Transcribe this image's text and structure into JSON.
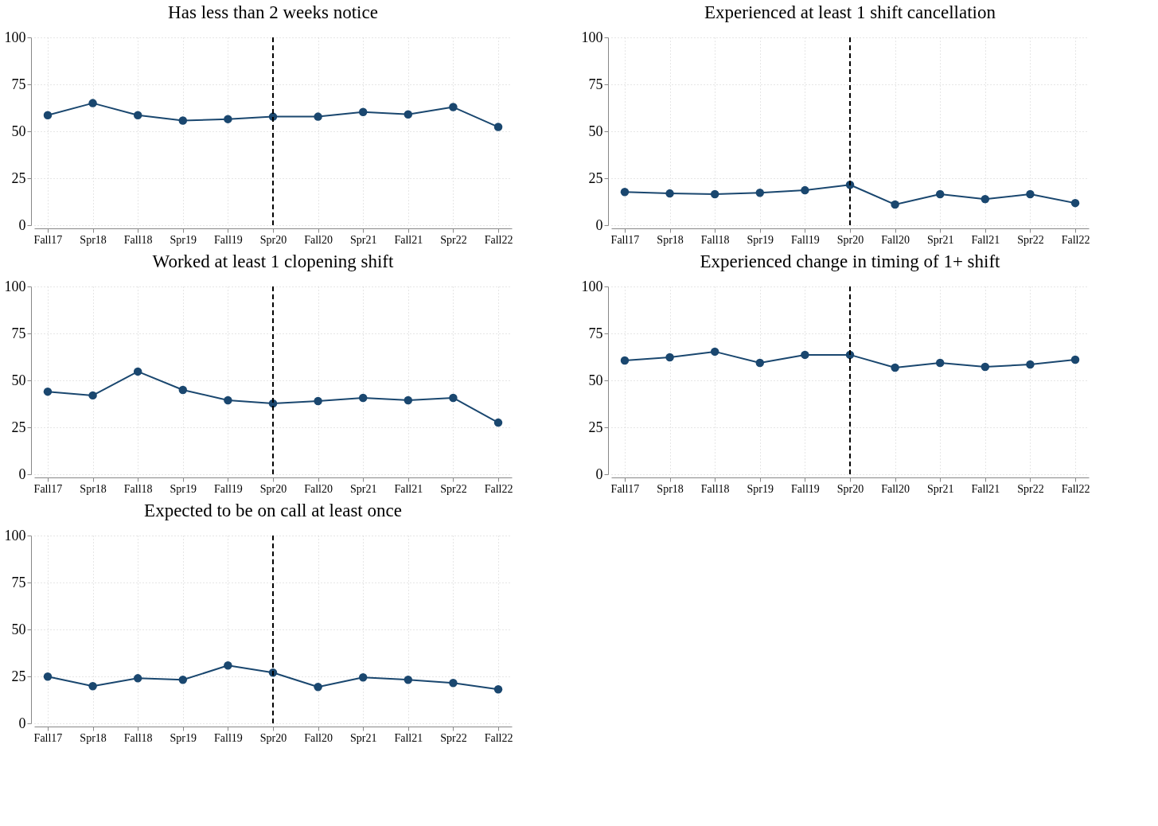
{
  "chart_data": [
    {
      "type": "line",
      "title": "Has less than 2 weeks notice",
      "categories": [
        "Fall17",
        "Spr18",
        "Fall18",
        "Spr19",
        "Fall19",
        "Spr20",
        "Fall20",
        "Spr21",
        "Fall21",
        "Spr22",
        "Fall22"
      ],
      "values": [
        58.6,
        65,
        58.6,
        55.7,
        56.5,
        57.8,
        57.8,
        60.3,
        59,
        62.9,
        52.3
      ],
      "color": "#1a476f",
      "ylim": [
        0,
        100
      ],
      "yticks": [
        0,
        25,
        50,
        75,
        100
      ],
      "grid": true,
      "marker": "circle",
      "ref_lines": [
        {
          "axis": "x",
          "value": "Spr20",
          "line_style": "dashed",
          "color": "#000000"
        }
      ]
    },
    {
      "type": "line",
      "title": "Experienced at least 1 shift cancellation",
      "categories": [
        "Fall17",
        "Spr18",
        "Fall18",
        "Spr19",
        "Fall19",
        "Spr20",
        "Fall20",
        "Spr21",
        "Fall21",
        "Spr22",
        "Fall22"
      ],
      "values": [
        17.7,
        16.9,
        16.5,
        17.3,
        18.6,
        21.5,
        11,
        16.5,
        13.9,
        16.5,
        11.8
      ],
      "color": "#1a476f",
      "ylim": [
        0,
        100
      ],
      "yticks": [
        0,
        25,
        50,
        75,
        100
      ],
      "grid": true,
      "marker": "circle",
      "ref_lines": [
        {
          "axis": "x",
          "value": "Spr20",
          "line_style": "dashed",
          "color": "#000000"
        }
      ]
    },
    {
      "type": "line",
      "title": "Worked at least 1 clopening shift",
      "categories": [
        "Fall17",
        "Spr18",
        "Fall18",
        "Spr19",
        "Fall19",
        "Spr20",
        "Fall20",
        "Spr21",
        "Fall21",
        "Spr22",
        "Fall22"
      ],
      "values": [
        44,
        42,
        54.7,
        44.9,
        39.4,
        37.7,
        39,
        40.7,
        39.4,
        40.7,
        27.5
      ],
      "color": "#1a476f",
      "ylim": [
        0,
        100
      ],
      "yticks": [
        0,
        25,
        50,
        75,
        100
      ],
      "grid": true,
      "marker": "circle",
      "ref_lines": [
        {
          "axis": "x",
          "value": "Spr20",
          "line_style": "dashed",
          "color": "#000000"
        }
      ]
    },
    {
      "type": "line",
      "title": "Experienced change in timing of 1+ shift",
      "categories": [
        "Fall17",
        "Spr18",
        "Fall18",
        "Spr19",
        "Fall19",
        "Spr20",
        "Fall20",
        "Spr21",
        "Fall21",
        "Spr22",
        "Fall22"
      ],
      "values": [
        60.6,
        62.3,
        65.3,
        59.3,
        63.6,
        63.6,
        56.8,
        59.3,
        57.2,
        58.5,
        61
      ],
      "color": "#1a476f",
      "ylim": [
        0,
        100
      ],
      "yticks": [
        0,
        25,
        50,
        75,
        100
      ],
      "grid": true,
      "marker": "circle",
      "ref_lines": [
        {
          "axis": "x",
          "value": "Spr20",
          "line_style": "dashed",
          "color": "#000000"
        }
      ]
    },
    {
      "type": "line",
      "title": "Expected to be on call at least once",
      "categories": [
        "Fall17",
        "Spr18",
        "Fall18",
        "Spr19",
        "Fall19",
        "Spr20",
        "Fall20",
        "Spr21",
        "Fall21",
        "Spr22",
        "Fall22"
      ],
      "values": [
        24.9,
        19.8,
        24,
        23.2,
        30.8,
        27,
        19.4,
        24.5,
        23.2,
        21.5,
        18.1
      ],
      "color": "#1a476f",
      "ylim": [
        0,
        100
      ],
      "yticks": [
        0,
        25,
        50,
        75,
        100
      ],
      "grid": true,
      "marker": "circle",
      "ref_lines": [
        {
          "axis": "x",
          "value": "Spr20",
          "line_style": "dashed",
          "color": "#000000"
        }
      ]
    }
  ]
}
